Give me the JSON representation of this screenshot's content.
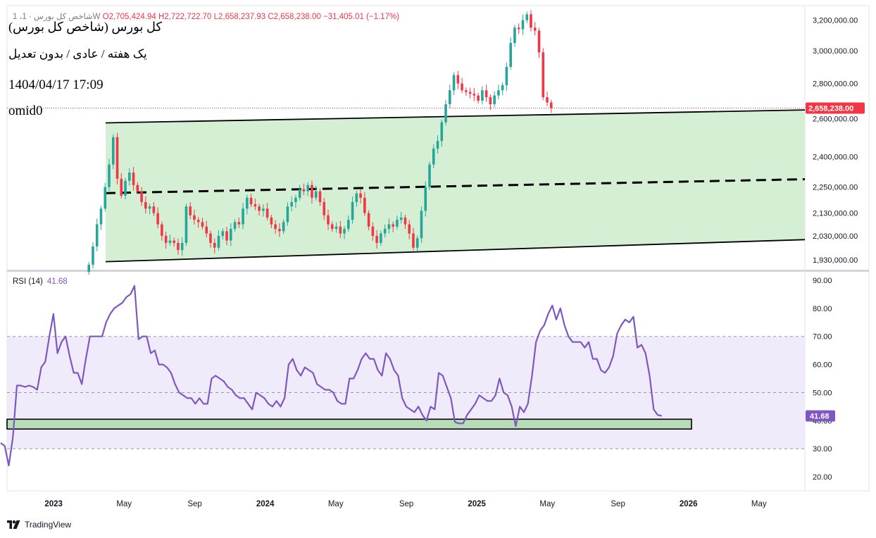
{
  "header": {
    "symbol_line": "1 ،شاخص کل بورس · 1W",
    "open": "O2,705,424.94",
    "high": "H2,722,722.70",
    "low": "L2,658,237.93",
    "close": "C2,658,238.00",
    "change": "−31,405.01 (−1.17%)"
  },
  "annotations": {
    "name": "کل بورس (شاخص کل بورس)",
    "settings": "یک هفته / عادی / بدون تعدیل",
    "datetime": "1404/04/17 17:09",
    "author": "omid0"
  },
  "footer": {
    "brand": "TradingView"
  },
  "colors": {
    "up": "#26a69a",
    "down": "#f23645",
    "rsi": "#7e57c2",
    "channel_fill": "#d4efd4",
    "rsi_band": "#f0ebfa",
    "support_box": "#b7dcb7",
    "last_price_badge": "#f23645",
    "rsi_badge": "#7e57c2"
  },
  "chart_data": [
    {
      "type": "candlestick",
      "title": "کل بورس (شاخص کل بورس)",
      "interval": "weekly",
      "scale": "logarithmic",
      "x_ticks": [
        "2023",
        "May",
        "Sep",
        "2024",
        "May",
        "Sep",
        "2025",
        "May",
        "Sep",
        "2026",
        "May"
      ],
      "y_ticks": [
        "1,930,000.00",
        "2,030,000.00",
        "2,130,000.00",
        "2,250,000.00",
        "2,400,000.00",
        "2,600,000.00",
        "2,800,000.00",
        "3,000,000.00",
        "3,200,000.00"
      ],
      "y_tick_values": [
        1930000,
        2030000,
        2130000,
        2250000,
        2400000,
        2600000,
        2800000,
        3000000,
        3200000
      ],
      "ylim": [
        1890000,
        3300000
      ],
      "last_price": 2658238,
      "last_price_label": "2,658,238.00",
      "close_series_start": "2023-03",
      "close_values": [
        1910000,
        1985000,
        2080000,
        2150000,
        2250000,
        2360000,
        2500000,
        2290000,
        2210000,
        2280000,
        2320000,
        2260000,
        2230000,
        2180000,
        2150000,
        2160000,
        2130000,
        2080000,
        2030000,
        2000000,
        2010000,
        2000000,
        1970000,
        2000000,
        2160000,
        2120000,
        2100000,
        2090000,
        2070000,
        2040000,
        2000000,
        1980000,
        2030000,
        2050000,
        2010000,
        2060000,
        2090000,
        2080000,
        2150000,
        2200000,
        2170000,
        2160000,
        2140000,
        2150000,
        2110000,
        2080000,
        2060000,
        2050000,
        2090000,
        2160000,
        2180000,
        2200000,
        2240000,
        2230000,
        2260000,
        2200000,
        2230000,
        2180000,
        2120000,
        2080000,
        2060000,
        2070000,
        2040000,
        2060000,
        2100000,
        2180000,
        2220000,
        2200000,
        2130000,
        2070000,
        2030000,
        2000000,
        2040000,
        2060000,
        2080000,
        2070000,
        2100000,
        2110000,
        2080000,
        2040000,
        1980000,
        2020000,
        2140000,
        2250000,
        2360000,
        2440000,
        2480000,
        2580000,
        2680000,
        2760000,
        2850000,
        2800000,
        2760000,
        2750000,
        2740000,
        2730000,
        2700000,
        2760000,
        2720000,
        2680000,
        2730000,
        2760000,
        2790000,
        2900000,
        3050000,
        3150000,
        3140000,
        3200000,
        3240000,
        3150000,
        3130000,
        2990000,
        2720000,
        2690000,
        2658238
      ],
      "channel": {
        "upper": [
          {
            "date": "2023-03",
            "value": 2575000
          },
          {
            "date": "2026-06",
            "value": 2645000
          }
        ],
        "middle": [
          {
            "date": "2023-03",
            "value": 2220000
          },
          {
            "date": "2026-06",
            "value": 2285000
          }
        ],
        "lower": [
          {
            "date": "2023-03",
            "value": 1920000
          },
          {
            "date": "2026-06",
            "value": 2010000
          }
        ]
      }
    },
    {
      "type": "line",
      "title": "RSI (14)",
      "label": "RSI (14)",
      "current_value": 41.68,
      "current_value_label": "41.68",
      "y_ticks": [
        "20.00",
        "30.00",
        "40.00",
        "50.00",
        "60.00",
        "70.00",
        "80.00",
        "90.00"
      ],
      "y_tick_values": [
        20,
        30,
        40,
        50,
        60,
        70,
        80,
        90
      ],
      "ylim": [
        15,
        93
      ],
      "bands": {
        "upper": 70,
        "middle": 50,
        "lower": 30
      },
      "support_zone": [
        37,
        40.5
      ],
      "series_start": "2022-10",
      "values": [
        32,
        31,
        24,
        34,
        52.5,
        52.5,
        52,
        52.5,
        52,
        51,
        59,
        61,
        70,
        78,
        64,
        68,
        70,
        63,
        57,
        57,
        53,
        62,
        70,
        70,
        70,
        70,
        75,
        78,
        80,
        81,
        82,
        84,
        85,
        88,
        69,
        70,
        70,
        64,
        65,
        60,
        60,
        59,
        57,
        53,
        50,
        49,
        48,
        48,
        46,
        48,
        46,
        46,
        55,
        56,
        55,
        54,
        52,
        51,
        49,
        48,
        48,
        46,
        44,
        50,
        49,
        48,
        46,
        45,
        47,
        45,
        48,
        60,
        62,
        58,
        56,
        59,
        58,
        57,
        53,
        52,
        51,
        51,
        50,
        47,
        46,
        46,
        55,
        55,
        58,
        62,
        64,
        62,
        62,
        58,
        56,
        64,
        62,
        58,
        56,
        48,
        45,
        44,
        43,
        45,
        42,
        40,
        45,
        44,
        57,
        56,
        52,
        48,
        39.5,
        39,
        39,
        42,
        44,
        46,
        49,
        48,
        47,
        47,
        49,
        55,
        50,
        49,
        45,
        38,
        45,
        43,
        46,
        56,
        68,
        72,
        74,
        78,
        81,
        76,
        80,
        74,
        70,
        68,
        68,
        68,
        66,
        68,
        62,
        62,
        58,
        57,
        59,
        63,
        71,
        74,
        76,
        75,
        77,
        66,
        67,
        64,
        56,
        44,
        42,
        41.68
      ]
    }
  ]
}
